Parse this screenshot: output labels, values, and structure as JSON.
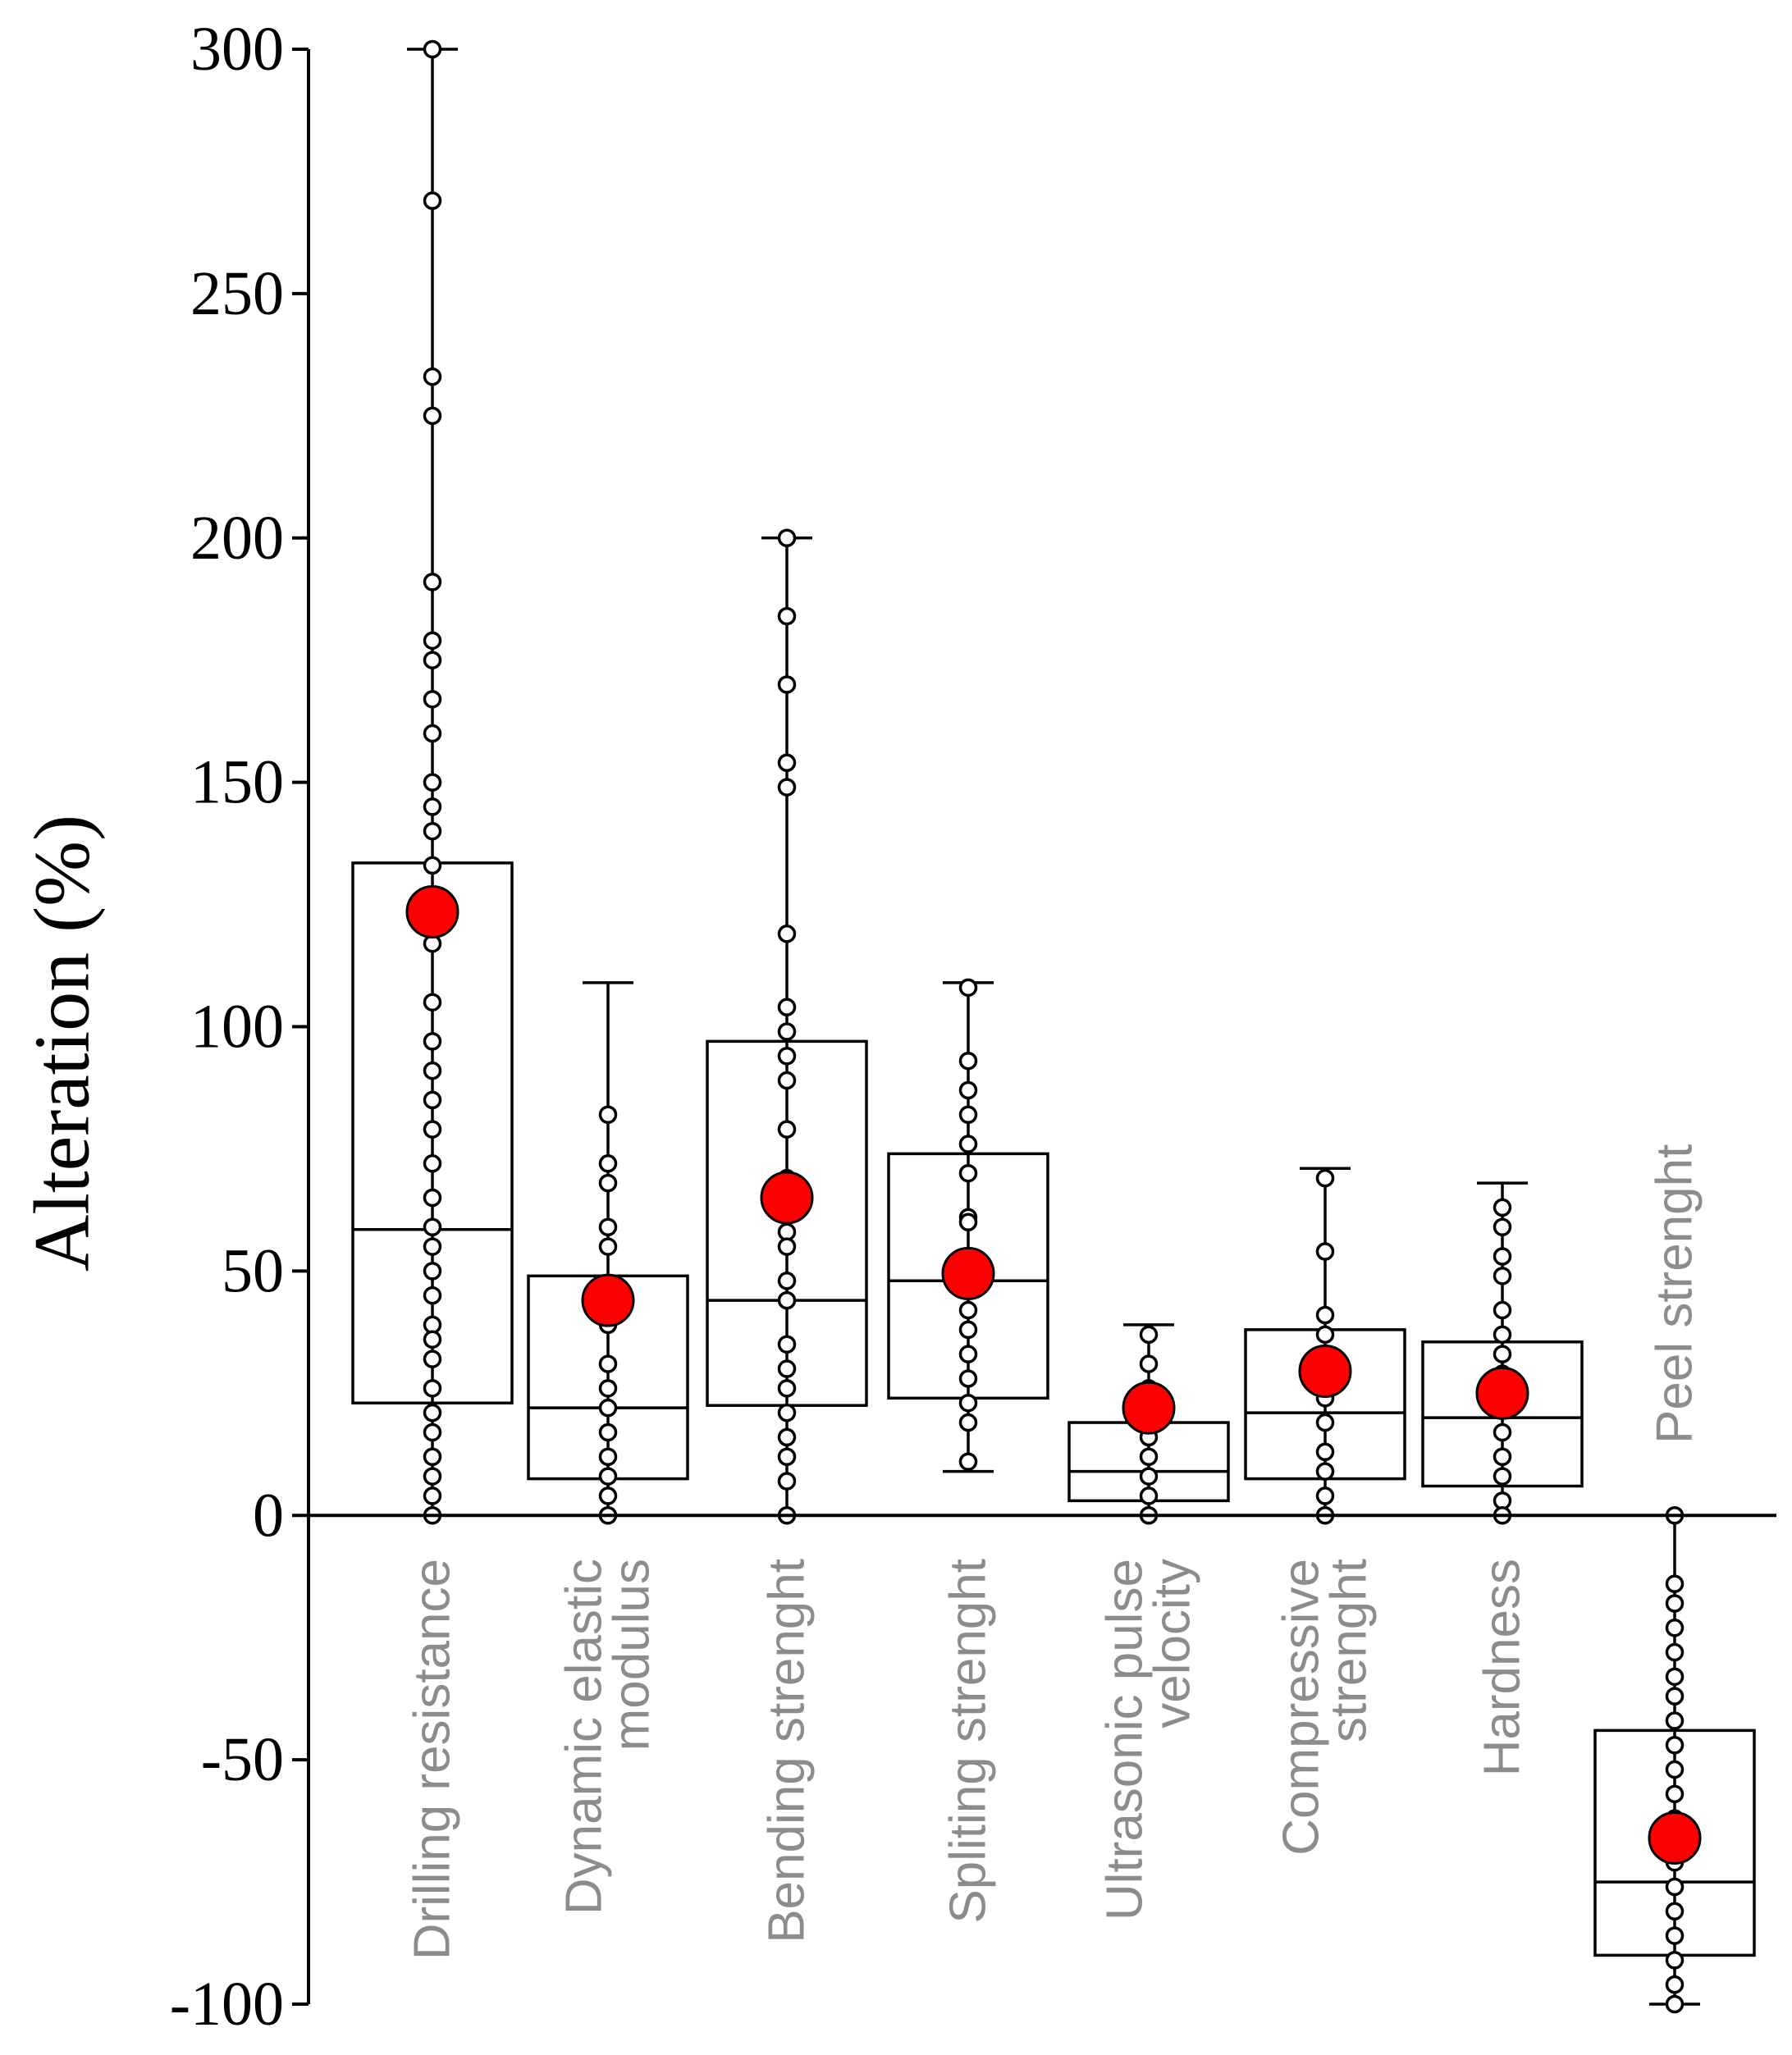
{
  "chart_data": {
    "type": "box",
    "ylabel": "Alteration (%)",
    "ylim": [
      -100,
      300
    ],
    "yticks": [
      -100,
      -50,
      0,
      50,
      100,
      150,
      200,
      250,
      300
    ],
    "series": [
      {
        "name": "Drilling resistance",
        "label_lines": [
          "Drilling resistance"
        ],
        "label_position": "below",
        "q1": 23,
        "median": 58.5,
        "q3": 133.5,
        "whisker_low": 0,
        "whisker_high": 300,
        "mean": 123.5,
        "points": [
          300,
          269,
          233,
          225,
          191,
          179,
          175,
          167,
          160,
          150,
          145,
          140,
          133,
          117,
          105,
          97,
          91,
          85,
          79,
          72,
          65,
          59,
          55,
          50,
          45,
          39,
          36,
          32,
          26,
          21,
          17,
          12,
          8,
          4,
          0
        ]
      },
      {
        "name": "Dynamic elastic modulus",
        "label_lines": [
          "Dynamic elastic",
          "modulus"
        ],
        "label_position": "below",
        "q1": 7.5,
        "median": 22,
        "q3": 49,
        "whisker_low": 0,
        "whisker_high": 109,
        "mean": 44,
        "points": [
          82,
          72,
          68,
          59,
          55,
          39,
          31,
          26,
          22,
          17,
          12,
          8,
          4,
          0
        ]
      },
      {
        "name": "Bending strenght",
        "label_lines": [
          "Bending strenght"
        ],
        "label_position": "below",
        "q1": 22.5,
        "median": 44,
        "q3": 97,
        "whisker_low": 0,
        "whisker_high": 200,
        "mean": 65,
        "points": [
          200,
          184,
          170,
          154,
          149,
          119,
          104,
          99,
          94,
          89,
          79,
          69,
          65,
          58,
          55,
          48,
          44,
          35,
          30,
          26,
          21,
          16,
          12,
          7,
          0
        ]
      },
      {
        "name": "Spliting strenght",
        "label_lines": [
          "Spliting strenght"
        ],
        "label_position": "below",
        "q1": 24,
        "median": 48,
        "q3": 74,
        "whisker_low": 9,
        "whisker_high": 109,
        "mean": 49.5,
        "points": [
          108,
          93,
          87,
          82,
          76,
          70,
          61,
          60,
          46,
          42,
          38,
          33,
          28,
          23,
          19,
          11
        ]
      },
      {
        "name": "Ultrasonic pulse velocity",
        "label_lines": [
          "Ultrasonic pulse",
          "velocity"
        ],
        "label_position": "below",
        "q1": 3,
        "median": 9,
        "q3": 19,
        "whisker_low": 0,
        "whisker_high": 39,
        "mean": 22,
        "points": [
          37,
          31,
          26,
          21,
          16,
          12,
          8,
          4,
          0
        ]
      },
      {
        "name": "Compressive strenght",
        "label_lines": [
          "Compressive",
          "strenght"
        ],
        "label_position": "below",
        "q1": 7.5,
        "median": 21,
        "q3": 38,
        "whisker_low": 0,
        "whisker_high": 71,
        "mean": 29.5,
        "points": [
          69,
          54,
          41,
          37,
          32,
          28,
          24,
          19,
          13,
          9,
          4,
          0
        ]
      },
      {
        "name": "Hardness",
        "label_lines": [
          "Hardness"
        ],
        "label_position": "below",
        "q1": 6,
        "median": 20,
        "q3": 35.5,
        "whisker_low": 0,
        "whisker_high": 68,
        "mean": 25,
        "points": [
          63,
          59,
          53,
          49,
          42,
          37,
          33,
          29,
          22,
          17,
          12,
          8,
          3,
          0
        ]
      },
      {
        "name": "Peel strenght",
        "label_lines": [
          "Peel strenght"
        ],
        "label_position": "above",
        "q1": -90,
        "median": -75,
        "q3": -44,
        "whisker_low": -100,
        "whisker_high": 0,
        "mean": -66,
        "points": [
          0,
          -14,
          -18,
          -23,
          -28,
          -33,
          -37,
          -42,
          -47,
          -52,
          -57,
          -62,
          -67,
          -71,
          -76,
          -81,
          -86,
          -91,
          -96,
          -100
        ]
      }
    ]
  },
  "colors": {
    "axis": "#000000",
    "box_fill": "#ffffff",
    "box_stroke": "#000000",
    "point_fill": "#ffffff",
    "point_stroke": "#000000",
    "mean_fill": "#ff0000",
    "mean_stroke": "#000000",
    "category_text": "#8c8c8c",
    "tick_text": "#000000"
  }
}
